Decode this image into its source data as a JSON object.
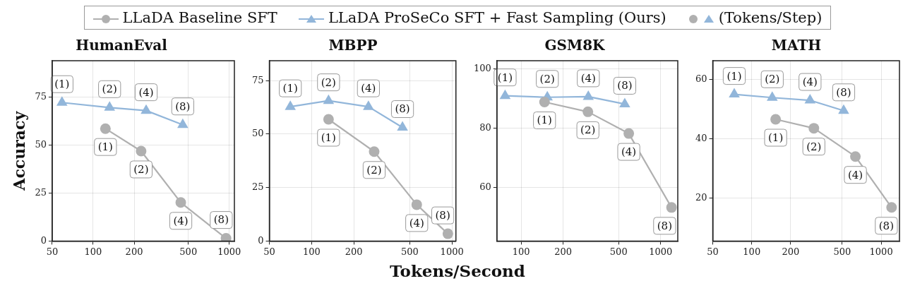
{
  "chart_data": [
    {
      "type": "line",
      "title": "HumanEval",
      "ylabel": "Accuracy",
      "log": "x",
      "legend": "top",
      "grid": true,
      "xlim": [
        50,
        1090
      ],
      "xticks": [
        50,
        100,
        200,
        500,
        1000
      ],
      "ylim": [
        0,
        94
      ],
      "yticks": [
        0,
        25,
        50,
        75
      ],
      "series": [
        {
          "name": "LLaDA Baseline SFT",
          "color": "#b0b0b0",
          "marker": "circle",
          "x": [
            123,
            225,
            440,
            946
          ],
          "values": [
            58.6,
            46.9,
            20.1,
            1.4
          ]
        },
        {
          "name": "LLaDA ProSeCo SFT + Fast Sampling (Ours)",
          "color": "#92b6da",
          "marker": "triangle",
          "x": [
            59,
            132,
            245,
            455
          ],
          "values": [
            72.2,
            69.6,
            68.0,
            60.6
          ]
        }
      ],
      "annotations": [
        "(Tokens/Step)",
        {
          "text": "(1)",
          "x": 123,
          "y": 58.6
        },
        {
          "text": "(2)",
          "x": 225,
          "y": 46.9
        },
        {
          "text": "(4)",
          "x": 440,
          "y": 20.1
        },
        {
          "text": "(8)",
          "x": 946,
          "y": 1.4
        },
        {
          "text": "(1)",
          "x": 59,
          "y": 72.2
        },
        {
          "text": "(2)",
          "x": 132,
          "y": 69.6
        },
        {
          "text": "(4)",
          "x": 245,
          "y": 68.0
        },
        {
          "text": "(8)",
          "x": 455,
          "y": 60.6
        }
      ]
    },
    {
      "type": "line",
      "title": "MBPP",
      "log": "x",
      "grid": true,
      "xlim": [
        50,
        1067
      ],
      "xticks": [
        50,
        100,
        200,
        500,
        1000
      ],
      "ylim": [
        0,
        84.3
      ],
      "yticks": [
        0,
        25,
        50,
        75
      ],
      "series": [
        {
          "color": "#b0b0b0",
          "marker": "circle",
          "x": [
            132,
            279,
            561,
            935
          ],
          "values": [
            56.9,
            41.8,
            17.0,
            3.4
          ]
        },
        {
          "color": "#92b6da",
          "marker": "triangle",
          "x": [
            70.5,
            132,
            254,
            444
          ],
          "values": [
            62.8,
            65.6,
            62.8,
            53.1
          ]
        }
      ],
      "annotations": [
        {
          "text": "(1)",
          "x": 132,
          "y": 56.9
        },
        {
          "text": "(2)",
          "x": 279,
          "y": 41.8
        },
        {
          "text": "(4)",
          "x": 561,
          "y": 17.0
        },
        {
          "text": "(8)",
          "x": 935,
          "y": 3.4
        },
        {
          "text": "(1)",
          "x": 70.5,
          "y": 62.8
        },
        {
          "text": "(2)",
          "x": 132,
          "y": 65.6
        },
        {
          "text": "(4)",
          "x": 254,
          "y": 62.8
        },
        {
          "text": "(8)",
          "x": 444,
          "y": 53.1
        }
      ]
    },
    {
      "type": "line",
      "title": "GSM8K",
      "xlabel": "Tokens/Second",
      "log": "x",
      "grid": true,
      "xlim": [
        67,
        1327
      ],
      "xticks": [
        100,
        200,
        500,
        1000
      ],
      "ylim": [
        42,
        102.7
      ],
      "yticks": [
        60,
        80,
        100
      ],
      "series": [
        {
          "color": "#b0b0b0",
          "marker": "circle",
          "x": [
            147,
            301,
            591,
            1197
          ],
          "values": [
            88.8,
            85.5,
            78.2,
            53.3
          ]
        },
        {
          "color": "#92b6da",
          "marker": "triangle",
          "x": [
            76.7,
            154,
            303,
            553
          ],
          "values": [
            90.9,
            90.4,
            90.6,
            88.1
          ]
        }
      ],
      "annotations": [
        {
          "text": "(1)",
          "x": 147,
          "y": 88.8
        },
        {
          "text": "(2)",
          "x": 301,
          "y": 85.5
        },
        {
          "text": "(4)",
          "x": 591,
          "y": 78.2
        },
        {
          "text": "(8)",
          "x": 1197,
          "y": 53.3
        },
        {
          "text": "(1)",
          "x": 76.7,
          "y": 90.9
        },
        {
          "text": "(2)",
          "x": 154,
          "y": 90.4
        },
        {
          "text": "(4)",
          "x": 303,
          "y": 90.6
        },
        {
          "text": "(8)",
          "x": 553,
          "y": 88.1
        }
      ]
    },
    {
      "type": "line",
      "title": "MATH",
      "log": "x",
      "grid": true,
      "xlim": [
        50,
        1384
      ],
      "xticks": [
        50,
        100,
        200,
        500,
        1000
      ],
      "ylim": [
        5.6,
        66.2
      ],
      "yticks": [
        20,
        40,
        60
      ],
      "series": [
        {
          "color": "#b0b0b0",
          "marker": "circle",
          "x": [
            153,
            302,
            632,
            1203
          ],
          "values": [
            46.5,
            43.5,
            34.0,
            16.9
          ]
        },
        {
          "color": "#92b6da",
          "marker": "triangle",
          "x": [
            73.3,
            144,
            282,
            513
          ],
          "values": [
            54.9,
            53.8,
            52.9,
            49.4
          ]
        }
      ],
      "annotations": [
        {
          "text": "(1)",
          "x": 153,
          "y": 46.5
        },
        {
          "text": "(2)",
          "x": 302,
          "y": 43.5
        },
        {
          "text": "(4)",
          "x": 632,
          "y": 34.0
        },
        {
          "text": "(8)",
          "x": 1203,
          "y": 16.9
        },
        {
          "text": "(1)",
          "x": 73.3,
          "y": 54.9
        },
        {
          "text": "(2)",
          "x": 144,
          "y": 53.8
        },
        {
          "text": "(4)",
          "x": 282,
          "y": 52.9
        },
        {
          "text": "(8)",
          "x": 513,
          "y": 49.4
        }
      ]
    }
  ]
}
